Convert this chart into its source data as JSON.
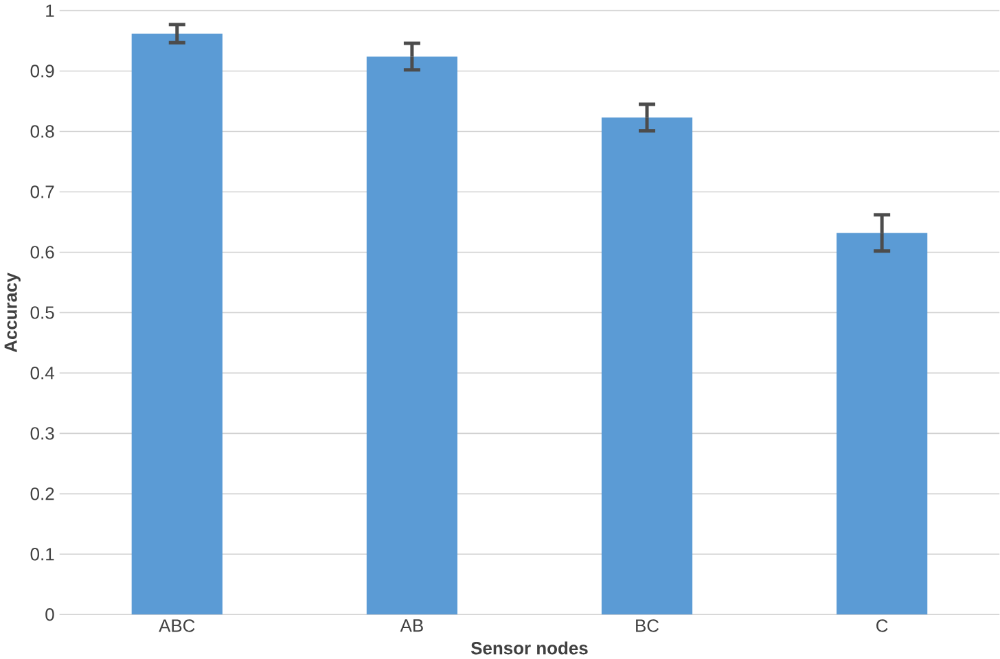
{
  "chart_data": {
    "type": "bar",
    "xlabel": "Sensor nodes",
    "ylabel": "Accuracy",
    "categories": [
      "ABC",
      "AB",
      "BC",
      "C"
    ],
    "values": [
      0.962,
      0.924,
      0.823,
      0.632
    ],
    "errors": [
      0.015,
      0.022,
      0.022,
      0.03
    ],
    "color": "#5b9bd5",
    "ylim": [
      0,
      1
    ],
    "yticks": [
      0,
      0.1,
      0.2,
      0.3,
      0.4,
      0.5,
      0.6,
      0.7,
      0.8,
      0.9,
      1
    ],
    "grid": "y"
  }
}
